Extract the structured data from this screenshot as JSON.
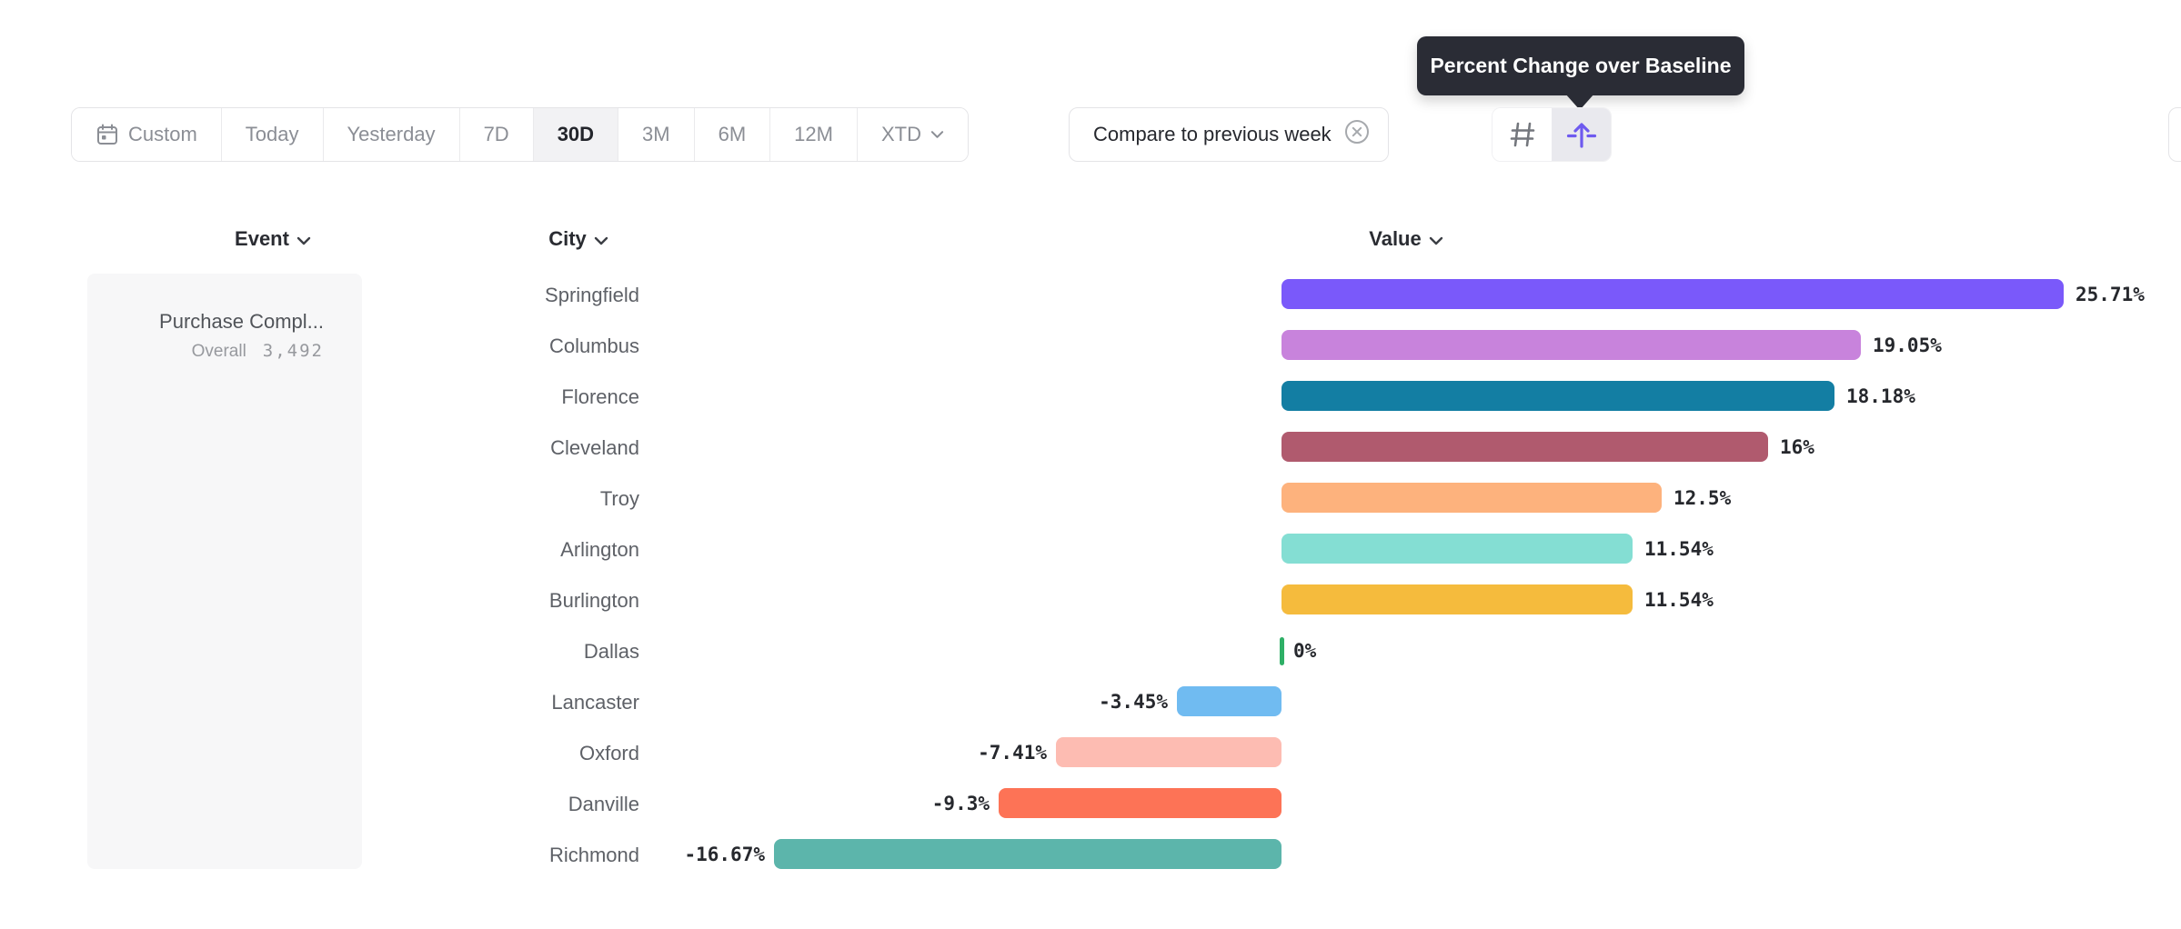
{
  "toolbar": {
    "date_ranges": [
      {
        "label": "Custom",
        "selected": false,
        "icon": "calendar-icon"
      },
      {
        "label": "Today",
        "selected": false
      },
      {
        "label": "Yesterday",
        "selected": false
      },
      {
        "label": "7D",
        "selected": false
      },
      {
        "label": "30D",
        "selected": true
      },
      {
        "label": "3M",
        "selected": false
      },
      {
        "label": "6M",
        "selected": false
      },
      {
        "label": "12M",
        "selected": false
      },
      {
        "label": "XTD",
        "selected": false,
        "icon": "chevron-down-icon"
      }
    ],
    "compare_chip": {
      "label": "Compare to previous week",
      "close_icon": "circle-x-icon"
    },
    "view_toggle": [
      {
        "icon": "hash-grid-icon",
        "selected": false,
        "color": "#74777d"
      },
      {
        "icon": "arrow-up-baseline-icon",
        "selected": true,
        "color": "#6e5aef"
      }
    ]
  },
  "tooltip": {
    "text": "Percent Change over Baseline"
  },
  "columns": {
    "event": "Event",
    "city": "City",
    "value": "Value"
  },
  "event_card": {
    "name": "Purchase Compl...",
    "overall_label": "Overall",
    "overall_value": "3,492"
  },
  "chart_data": {
    "type": "bar",
    "orientation": "horizontal",
    "title": "Percent Change over Baseline",
    "categories": [
      "Springfield",
      "Columbus",
      "Florence",
      "Cleveland",
      "Troy",
      "Arlington",
      "Burlington",
      "Dallas",
      "Lancaster",
      "Oxford",
      "Danville",
      "Richmond"
    ],
    "values": [
      25.71,
      19.05,
      18.18,
      16,
      12.5,
      11.54,
      11.54,
      0,
      -3.45,
      -7.41,
      -9.3,
      -16.67
    ],
    "value_labels": [
      "25.71%",
      "19.05%",
      "18.18%",
      "16%",
      "12.5%",
      "11.54%",
      "11.54%",
      "0%",
      "-3.45%",
      "-7.41%",
      "-9.3%",
      "-16.67%"
    ],
    "colors": [
      "#7a59fa",
      "#c883dc",
      "#137ea3",
      "#b05a6e",
      "#fdb27d",
      "#84ded3",
      "#f5bb3d",
      "#2eaf66",
      "#70bbf1",
      "#fdbcb2",
      "#fd7356",
      "#5cb5ab"
    ],
    "baseline": 0,
    "xlim": [
      -20,
      29
    ],
    "grid": false,
    "legend": false
  }
}
